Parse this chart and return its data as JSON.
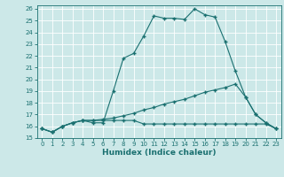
{
  "xlabel": "Humidex (Indice chaleur)",
  "bg_color": "#cce8e8",
  "grid_color": "#ffffff",
  "line_color": "#1a7070",
  "xlim": [
    -0.5,
    23.5
  ],
  "ylim": [
    15,
    26.3
  ],
  "xticks": [
    0,
    1,
    2,
    3,
    4,
    5,
    6,
    7,
    8,
    9,
    10,
    11,
    12,
    13,
    14,
    15,
    16,
    17,
    18,
    19,
    20,
    21,
    22,
    23
  ],
  "yticks": [
    15,
    16,
    17,
    18,
    19,
    20,
    21,
    22,
    23,
    24,
    25,
    26
  ],
  "line1_x": [
    0,
    1,
    2,
    3,
    4,
    5,
    6,
    7,
    8,
    9,
    10,
    11,
    12,
    13,
    14,
    15,
    16,
    17,
    18,
    19,
    20,
    21,
    22,
    23
  ],
  "line1_y": [
    15.8,
    15.5,
    16.0,
    16.3,
    16.5,
    16.3,
    16.3,
    19.0,
    21.8,
    22.2,
    23.7,
    25.4,
    25.2,
    25.2,
    25.1,
    26.0,
    25.5,
    25.3,
    23.2,
    20.7,
    18.5,
    17.0,
    16.3,
    15.8
  ],
  "line2_x": [
    0,
    1,
    2,
    3,
    4,
    5,
    6,
    7,
    8,
    9,
    10,
    11,
    12,
    13,
    14,
    15,
    16,
    17,
    18,
    19,
    20,
    21,
    22,
    23
  ],
  "line2_y": [
    15.8,
    15.5,
    16.0,
    16.3,
    16.5,
    16.5,
    16.6,
    16.7,
    16.9,
    17.1,
    17.4,
    17.6,
    17.9,
    18.1,
    18.3,
    18.6,
    18.9,
    19.1,
    19.3,
    19.6,
    18.5,
    17.0,
    16.3,
    15.8
  ],
  "line3_x": [
    0,
    1,
    2,
    3,
    4,
    5,
    6,
    7,
    8,
    9,
    10,
    11,
    12,
    13,
    14,
    15,
    16,
    17,
    18,
    19,
    20,
    21,
    22,
    23
  ],
  "line3_y": [
    15.8,
    15.5,
    16.0,
    16.3,
    16.5,
    16.5,
    16.5,
    16.5,
    16.5,
    16.5,
    16.2,
    16.2,
    16.2,
    16.2,
    16.2,
    16.2,
    16.2,
    16.2,
    16.2,
    16.2,
    16.2,
    16.2,
    16.2,
    15.8
  ]
}
